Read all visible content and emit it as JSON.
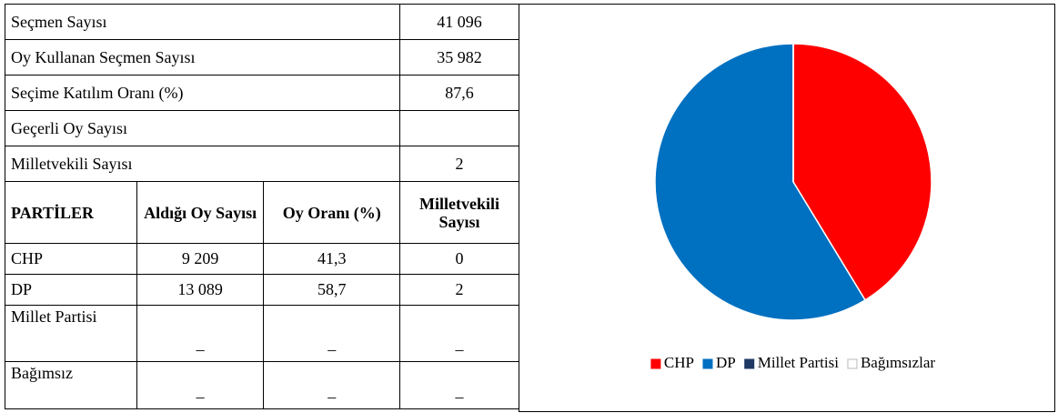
{
  "summary": [
    {
      "label": "Seçmen Sayısı",
      "value": "41 096"
    },
    {
      "label": "Oy Kullanan Seçmen Sayısı",
      "value": "35 982"
    },
    {
      "label": "Seçime Katılım Oranı (%)",
      "value": "87,6"
    },
    {
      "label": "Geçerli Oy Sayısı"
    },
    {
      "label": "Milletvekili Sayısı",
      "value": "2"
    }
  ],
  "table": {
    "header": [
      "PARTİLER",
      "Aldığı Oy Sayısı",
      "Oy Oranı (%)",
      "Milletvekili Sayısı"
    ],
    "rows": [
      [
        "CHP",
        "9 209",
        "41,3",
        "0"
      ],
      [
        "DP",
        "13 089",
        "58,7",
        "2"
      ],
      [
        "Millet Partisi",
        "–",
        "–",
        "–"
      ],
      [
        "Bağımsız",
        "–",
        "–",
        "–"
      ]
    ]
  },
  "chart_data": {
    "type": "pie",
    "categories": [
      "CHP",
      "DP",
      "Millet Partisi",
      "Bağımsızlar"
    ],
    "values": [
      41.3,
      58.7,
      0,
      0
    ],
    "colors": [
      "#ff0000",
      "#0070c0",
      "#1f3864",
      "#ffffff"
    ],
    "legend": "bottom"
  }
}
